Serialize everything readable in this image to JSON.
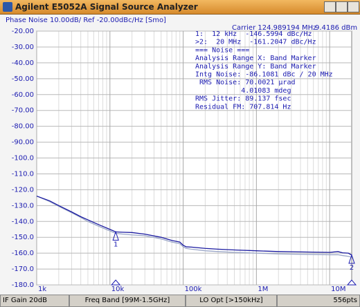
{
  "window": {
    "title": "Agilent E5052A Signal Source Analyzer"
  },
  "chart_data": {
    "type": "line",
    "title": "Phase Noise 10.00dB/ Ref -20.00dBc/Hz [Smo]",
    "carrier": "Carrier 124.989194 MHz",
    "carrier_power": "9.4186 dBm",
    "readout": [
      "1:  12 kHz  -146.5994 dBc/Hz",
      ">2:  20 MHz  -161.2047 dBc/Hz",
      "=== Noise ===",
      "Analysis Range X: Band Marker",
      "Analysis Range Y: Band Marker",
      "Intg Noise: -86.1081 dBc / 20 MHz",
      " RMS Noise: 70.0021 µrad",
      "           4.01083 mdeg",
      "RMS Jitter: 89.137 fsec",
      "Residual FM: 707.814 Hz"
    ],
    "log_x": true,
    "x": [
      1000,
      1500,
      2000,
      3000,
      4000,
      5000,
      7000,
      10000,
      12000,
      15000,
      20000,
      30000,
      50000,
      70000,
      90000,
      100000,
      110000,
      130000,
      200000,
      300000,
      500000,
      1000000,
      2000000,
      5000000,
      10000000,
      13000000,
      15000000,
      18000000,
      20000000
    ],
    "series": [
      {
        "color": "#9aa6c8",
        "values": [
          -124,
          -127.5,
          -130.5,
          -134.5,
          -137.5,
          -140,
          -143,
          -146,
          -147.5,
          -148,
          -148.5,
          -149,
          -151,
          -153,
          -154,
          -156,
          -157,
          -157.5,
          -158.5,
          -159,
          -159.5,
          -160,
          -160.5,
          -160.8,
          -161,
          -161,
          -161.5,
          -162,
          -162.5
        ]
      },
      {
        "color": "#1a1aa0",
        "values": [
          -124,
          -127,
          -130,
          -134,
          -137,
          -139,
          -142,
          -145,
          -146.6,
          -146.8,
          -147,
          -148,
          -150,
          -152,
          -153,
          -155,
          -156,
          -156.2,
          -157,
          -157.5,
          -158,
          -158.5,
          -159,
          -159.3,
          -159.5,
          -159,
          -159.8,
          -160,
          -161.2
        ]
      }
    ],
    "markers": [
      {
        "label": "1",
        "x": 12000,
        "y": -146.5994
      },
      {
        "label": "2",
        "x": 20000000,
        "y": -161.2047
      }
    ],
    "xlim": [
      1000,
      20000000
    ],
    "ylim": [
      -180,
      -20
    ],
    "xticks": [
      {
        "value": 1000,
        "label": "1k"
      },
      {
        "value": 10000,
        "label": "10k"
      },
      {
        "value": 100000,
        "label": "100k"
      },
      {
        "value": 1000000,
        "label": "1M"
      },
      {
        "value": 10000000,
        "label": "10M"
      }
    ],
    "x_minor_ticks": [
      2000,
      3000,
      4000,
      5000,
      6000,
      7000,
      8000,
      9000,
      20000,
      30000,
      40000,
      50000,
      60000,
      70000,
      80000,
      90000,
      200000,
      300000,
      400000,
      500000,
      600000,
      700000,
      800000,
      900000,
      2000000,
      3000000,
      4000000,
      5000000,
      6000000,
      7000000,
      8000000,
      9000000
    ],
    "yticks": [
      {
        "value": -20,
        "label": "-20.00"
      },
      {
        "value": -30,
        "label": "-30.00"
      },
      {
        "value": -40,
        "label": "-40.00"
      },
      {
        "value": -50,
        "label": "-50.00"
      },
      {
        "value": -60,
        "label": "-60.00"
      },
      {
        "value": -70,
        "label": "-70.00"
      },
      {
        "value": -80,
        "label": "-80.00"
      },
      {
        "value": -90,
        "label": "-90.00"
      },
      {
        "value": -100,
        "label": "-100.0"
      },
      {
        "value": -110,
        "label": "-110.0"
      },
      {
        "value": -120,
        "label": "-120.0"
      },
      {
        "value": -130,
        "label": "-130.0"
      },
      {
        "value": -140,
        "label": "-140.0"
      },
      {
        "value": -150,
        "label": "-150.0"
      },
      {
        "value": -160,
        "label": "-160.0"
      },
      {
        "value": -170,
        "label": "-170.0"
      },
      {
        "value": -180,
        "label": "-180.0"
      }
    ],
    "grid": true
  },
  "status": [
    "IF Gain 20dB",
    "Freq Band [99M-1.5GHz]",
    "LO Opt [>150kHz]",
    "556pts"
  ]
}
